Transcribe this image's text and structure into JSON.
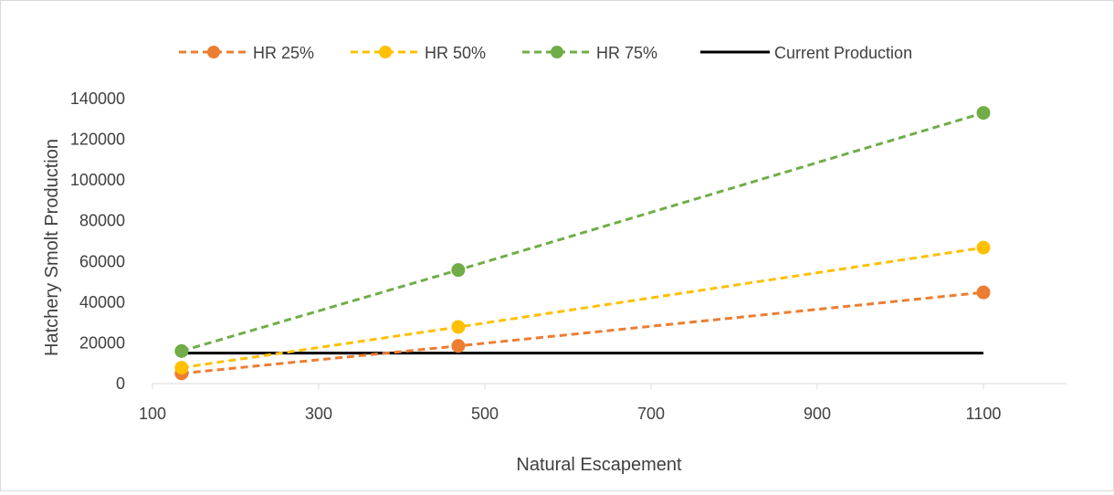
{
  "chart_data": {
    "type": "line",
    "title": "",
    "xlabel": "Natural Escapement",
    "ylabel": "Hatchery Smolt Production",
    "xlim": [
      100,
      1200
    ],
    "ylim": [
      0,
      140000
    ],
    "x_ticks": [
      "100",
      "300",
      "500",
      "700",
      "900",
      "1100"
    ],
    "y_ticks": [
      "0",
      "20000",
      "40000",
      "60000",
      "80000",
      "100000",
      "120000",
      "140000"
    ],
    "grid": false,
    "legend": "top",
    "series": [
      {
        "name": "HR 25%",
        "color": "#ED7D31",
        "style": "dashed-markers",
        "x": [
          135,
          468,
          1100
        ],
        "y": [
          5000,
          18500,
          44800
        ]
      },
      {
        "name": "HR 50%",
        "color": "#FFC000",
        "style": "dashed-markers",
        "x": [
          135,
          468,
          1100
        ],
        "y": [
          7800,
          27800,
          66800
        ]
      },
      {
        "name": "HR 75%",
        "color": "#70AD47",
        "style": "dashed-markers",
        "x": [
          135,
          468,
          1100
        ],
        "y": [
          16000,
          55800,
          133000
        ]
      },
      {
        "name": "Current Production",
        "color": "#000000",
        "style": "solid",
        "x": [
          135,
          1100
        ],
        "y": [
          15000,
          15000
        ]
      }
    ]
  }
}
